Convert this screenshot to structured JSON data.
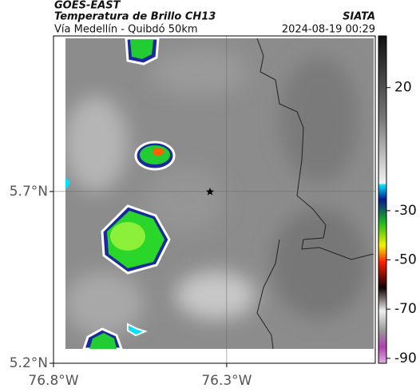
{
  "header": {
    "source": "GOES-EAST",
    "title": "Temperatura de Brillo CH13",
    "subtitle": "Vía Medellín - Quibdó 50km",
    "agency": "SIATA",
    "timestamp": "2024-08-19 00:29"
  },
  "map": {
    "xlim": [
      -76.8,
      -75.871
    ],
    "ylim": [
      5.2,
      6.153
    ],
    "xticks": [
      {
        "value": -76.8,
        "label": "76.8°W"
      },
      {
        "value": -76.3,
        "label": "76.3°W"
      }
    ],
    "yticks": [
      {
        "value": 5.2,
        "label": "5.2°N"
      },
      {
        "value": 5.7,
        "label": "5.7°N"
      }
    ],
    "grid": true
  },
  "colorbar": {
    "lim": [
      41,
      -92
    ],
    "ticks": [
      20,
      -30,
      -50,
      -70,
      -90
    ]
  }
}
